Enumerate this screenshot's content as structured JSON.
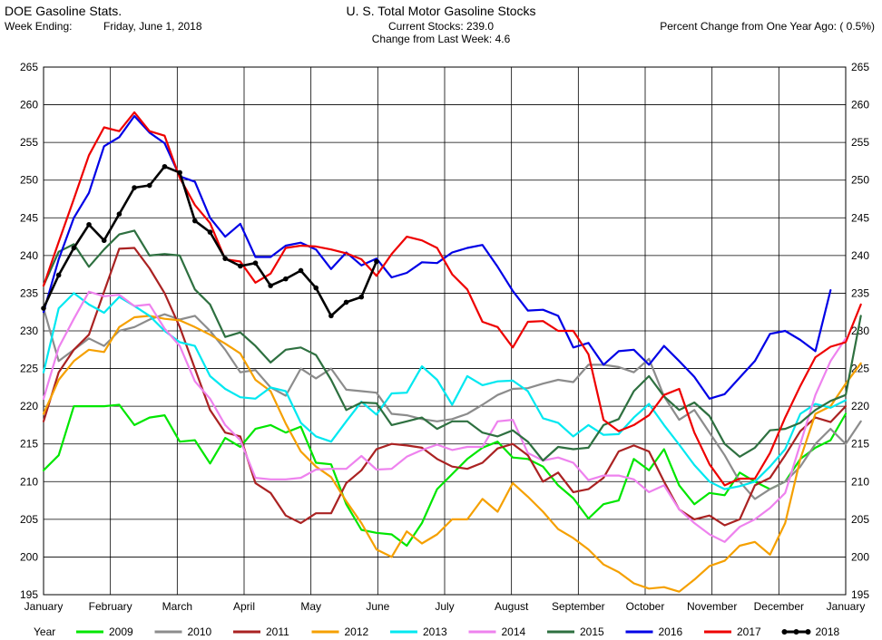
{
  "header": {
    "left_title": "DOE Gasoline Stats.",
    "week_label": "Week Ending:",
    "week_value": "Friday, June 1, 2018",
    "title": "U. S. Total Motor Gasoline Stocks",
    "current_stocks": "Current Stocks: 239.0",
    "change_last_week": "Change from Last Week:  4.6",
    "pct_change": "Percent Change from One Year Ago: ( 0.5%)"
  },
  "chart_data": {
    "type": "line",
    "title": "U. S. Total Motor Gasoline Stocks",
    "ylim": [
      195,
      265
    ],
    "y_ticks": [
      195,
      200,
      205,
      210,
      215,
      220,
      225,
      230,
      235,
      240,
      245,
      250,
      255,
      260,
      265
    ],
    "x_ticks": [
      "January",
      "February",
      "March",
      "April",
      "May",
      "June",
      "July",
      "August",
      "September",
      "October",
      "November",
      "December",
      "January"
    ],
    "legend_title": "Year",
    "legend_position": "bottom",
    "grid": true,
    "series": [
      {
        "name": "2009",
        "color": "#00e600",
        "values": [
          211.5,
          213.5,
          220,
          220,
          220,
          220.2,
          217.5,
          218.5,
          218.8,
          215.3,
          215.5,
          212.4,
          215.8,
          214.6,
          217,
          217.5,
          216.5,
          217.3,
          212.5,
          212.3,
          207,
          203.6,
          203.2,
          203,
          201.5,
          204.5,
          209,
          211,
          213,
          214.5,
          215.3,
          213.2,
          213,
          212,
          209.5,
          207.8,
          205.1,
          207,
          207.5,
          213,
          211.5,
          214.3,
          209.5,
          207,
          208.5,
          208.2,
          211.2,
          210,
          209,
          210,
          213,
          214.5,
          215.5,
          219
        ]
      },
      {
        "name": "2010",
        "color": "#8c8c8c",
        "values": [
          233,
          226,
          227.5,
          229,
          228,
          230,
          230.5,
          231.5,
          232.2,
          231.5,
          232,
          230,
          227.5,
          224.5,
          224.8,
          222.5,
          221.4,
          225,
          223.7,
          225,
          222.2,
          222,
          221.8,
          219,
          218.8,
          218.3,
          218,
          218.3,
          219,
          220.2,
          221.5,
          222.3,
          222.4,
          223,
          223.5,
          223.2,
          225.5,
          225.5,
          225.2,
          224.5,
          226.3,
          221.3,
          218.2,
          219.5,
          216.5,
          213.5,
          210,
          207.7,
          209,
          210,
          212,
          215,
          217,
          215,
          218
        ]
      },
      {
        "name": "2011",
        "color": "#aa2222",
        "values": [
          218,
          224.5,
          227.5,
          229.5,
          235.2,
          240.9,
          241,
          238.3,
          235,
          230.5,
          225,
          219.5,
          216.5,
          216,
          209.8,
          208.5,
          205.5,
          204.5,
          205.8,
          205.8,
          209.8,
          211.5,
          214.3,
          215,
          214.8,
          214.5,
          213,
          212,
          211.7,
          212.5,
          214.4,
          215,
          213.5,
          210,
          211.2,
          208.6,
          209,
          210.5,
          214,
          214.8,
          214,
          210,
          206.3,
          205,
          205.5,
          204.2,
          205,
          209.5,
          210.5,
          213.5,
          216.7,
          218.5,
          217.9,
          220
        ]
      },
      {
        "name": "2012",
        "color": "#f5a000",
        "values": [
          219,
          223.5,
          226,
          227.5,
          227.2,
          230.5,
          231.8,
          232,
          231.6,
          231.4,
          230.5,
          229.5,
          228.3,
          227,
          223.5,
          222,
          217.7,
          214,
          212,
          210.6,
          207.4,
          204.5,
          201,
          200,
          203.4,
          201.8,
          203,
          205,
          205,
          207.7,
          206,
          209.8,
          208,
          206,
          203.7,
          202.5,
          201,
          199,
          198,
          196.5,
          195.8,
          196,
          195.4,
          197,
          198.8,
          199.5,
          201.5,
          202,
          200.3,
          204.5,
          213,
          219,
          220,
          223,
          225.7
        ]
      },
      {
        "name": "2013",
        "color": "#00e8f0",
        "values": [
          224.5,
          233,
          235,
          233.5,
          232.4,
          234.5,
          233.3,
          232,
          230,
          228.5,
          228,
          224,
          222.3,
          221.2,
          221,
          222.5,
          222,
          217.8,
          216,
          215.3,
          218,
          220.6,
          218.9,
          221.7,
          221.8,
          225.3,
          223.5,
          220.2,
          224,
          222.8,
          223.3,
          223.4,
          222,
          218.4,
          217.8,
          216,
          217.5,
          216.2,
          216.3,
          218.5,
          220.3,
          217.5,
          214.9,
          212.2,
          210,
          209,
          209.4,
          210,
          212,
          214.3,
          219,
          220.3,
          219.8,
          220.8
        ]
      },
      {
        "name": "2014",
        "color": "#ee82ee",
        "values": [
          221,
          227.8,
          231.6,
          235.2,
          234.6,
          234.8,
          233.3,
          233.5,
          230.3,
          228,
          223.3,
          221,
          217.5,
          215.5,
          210.5,
          210.3,
          210.3,
          210.5,
          211.6,
          211.7,
          211.7,
          213.4,
          211.6,
          211.7,
          213.3,
          214.2,
          214.9,
          214.2,
          214.6,
          214.6,
          218,
          218.2,
          213.8,
          212.8,
          213.2,
          212.5,
          210.2,
          210.8,
          210.8,
          210.3,
          208.6,
          209.5,
          206.3,
          204.5,
          203,
          202,
          204,
          205,
          206.5,
          208.5,
          215,
          221.5,
          226,
          229
        ]
      },
      {
        "name": "2015",
        "color": "#2e7040",
        "values": [
          236,
          240.5,
          241.5,
          238.5,
          240.8,
          242.8,
          243.3,
          240,
          240.2,
          240,
          235.5,
          233.5,
          229.2,
          229.8,
          228,
          225.8,
          227.5,
          227.8,
          226.8,
          223.5,
          219.5,
          220.5,
          220.4,
          217.5,
          218,
          218.5,
          217,
          218,
          218,
          216.5,
          216,
          216.8,
          215.3,
          212.8,
          214.6,
          214.3,
          214.5,
          217.5,
          218.3,
          222,
          224,
          221.3,
          219.5,
          220.5,
          218.7,
          215,
          213.3,
          214.5,
          216.8,
          217,
          217.8,
          219.5,
          220.7,
          221.5,
          232
        ]
      },
      {
        "name": "2016",
        "color": "#0000e6",
        "values": [
          232.5,
          239.5,
          245,
          248.3,
          254.5,
          255.7,
          258.5,
          256.3,
          254.9,
          250.5,
          249.8,
          245,
          242.5,
          244.2,
          239.8,
          239.8,
          241.3,
          241.7,
          240.8,
          238.2,
          240.4,
          238.7,
          239.6,
          237.1,
          237.7,
          239.1,
          239,
          240.4,
          241,
          241.4,
          238.5,
          235.3,
          232.7,
          232.8,
          232,
          227.8,
          228.4,
          225.5,
          227.3,
          227.5,
          225.5,
          228,
          226,
          223.9,
          221,
          221.6,
          223.8,
          226,
          229.6,
          230,
          228.8,
          227.3,
          235.4
        ]
      },
      {
        "name": "2017",
        "color": "#ee0000",
        "values": [
          236,
          241.8,
          247.5,
          253.3,
          257,
          256.5,
          259,
          256.5,
          255.9,
          250.3,
          246.7,
          244.3,
          239.5,
          239.2,
          236.4,
          237.6,
          241,
          241.3,
          241.2,
          240.8,
          240.3,
          239.5,
          237.3,
          240.2,
          242.5,
          242,
          241,
          237.5,
          235.5,
          231.2,
          230.5,
          227.8,
          231.2,
          231.3,
          230,
          230,
          226.9,
          218.2,
          216.7,
          217.5,
          218.8,
          221.5,
          222.3,
          216.5,
          212.3,
          209.5,
          210.4,
          210.4,
          213.8,
          218.5,
          222.7,
          226.5,
          227.9,
          228.5,
          233.5
        ]
      },
      {
        "name": "2018",
        "color": "#000000",
        "values": [
          233,
          237.4,
          241,
          244.1,
          242,
          245.5,
          249,
          249.3,
          251.8,
          251,
          244.6,
          243.1,
          239.6,
          238.6,
          239,
          236,
          236.9,
          238,
          235.7,
          232,
          233.8,
          234.5,
          239.2
        ]
      }
    ]
  }
}
